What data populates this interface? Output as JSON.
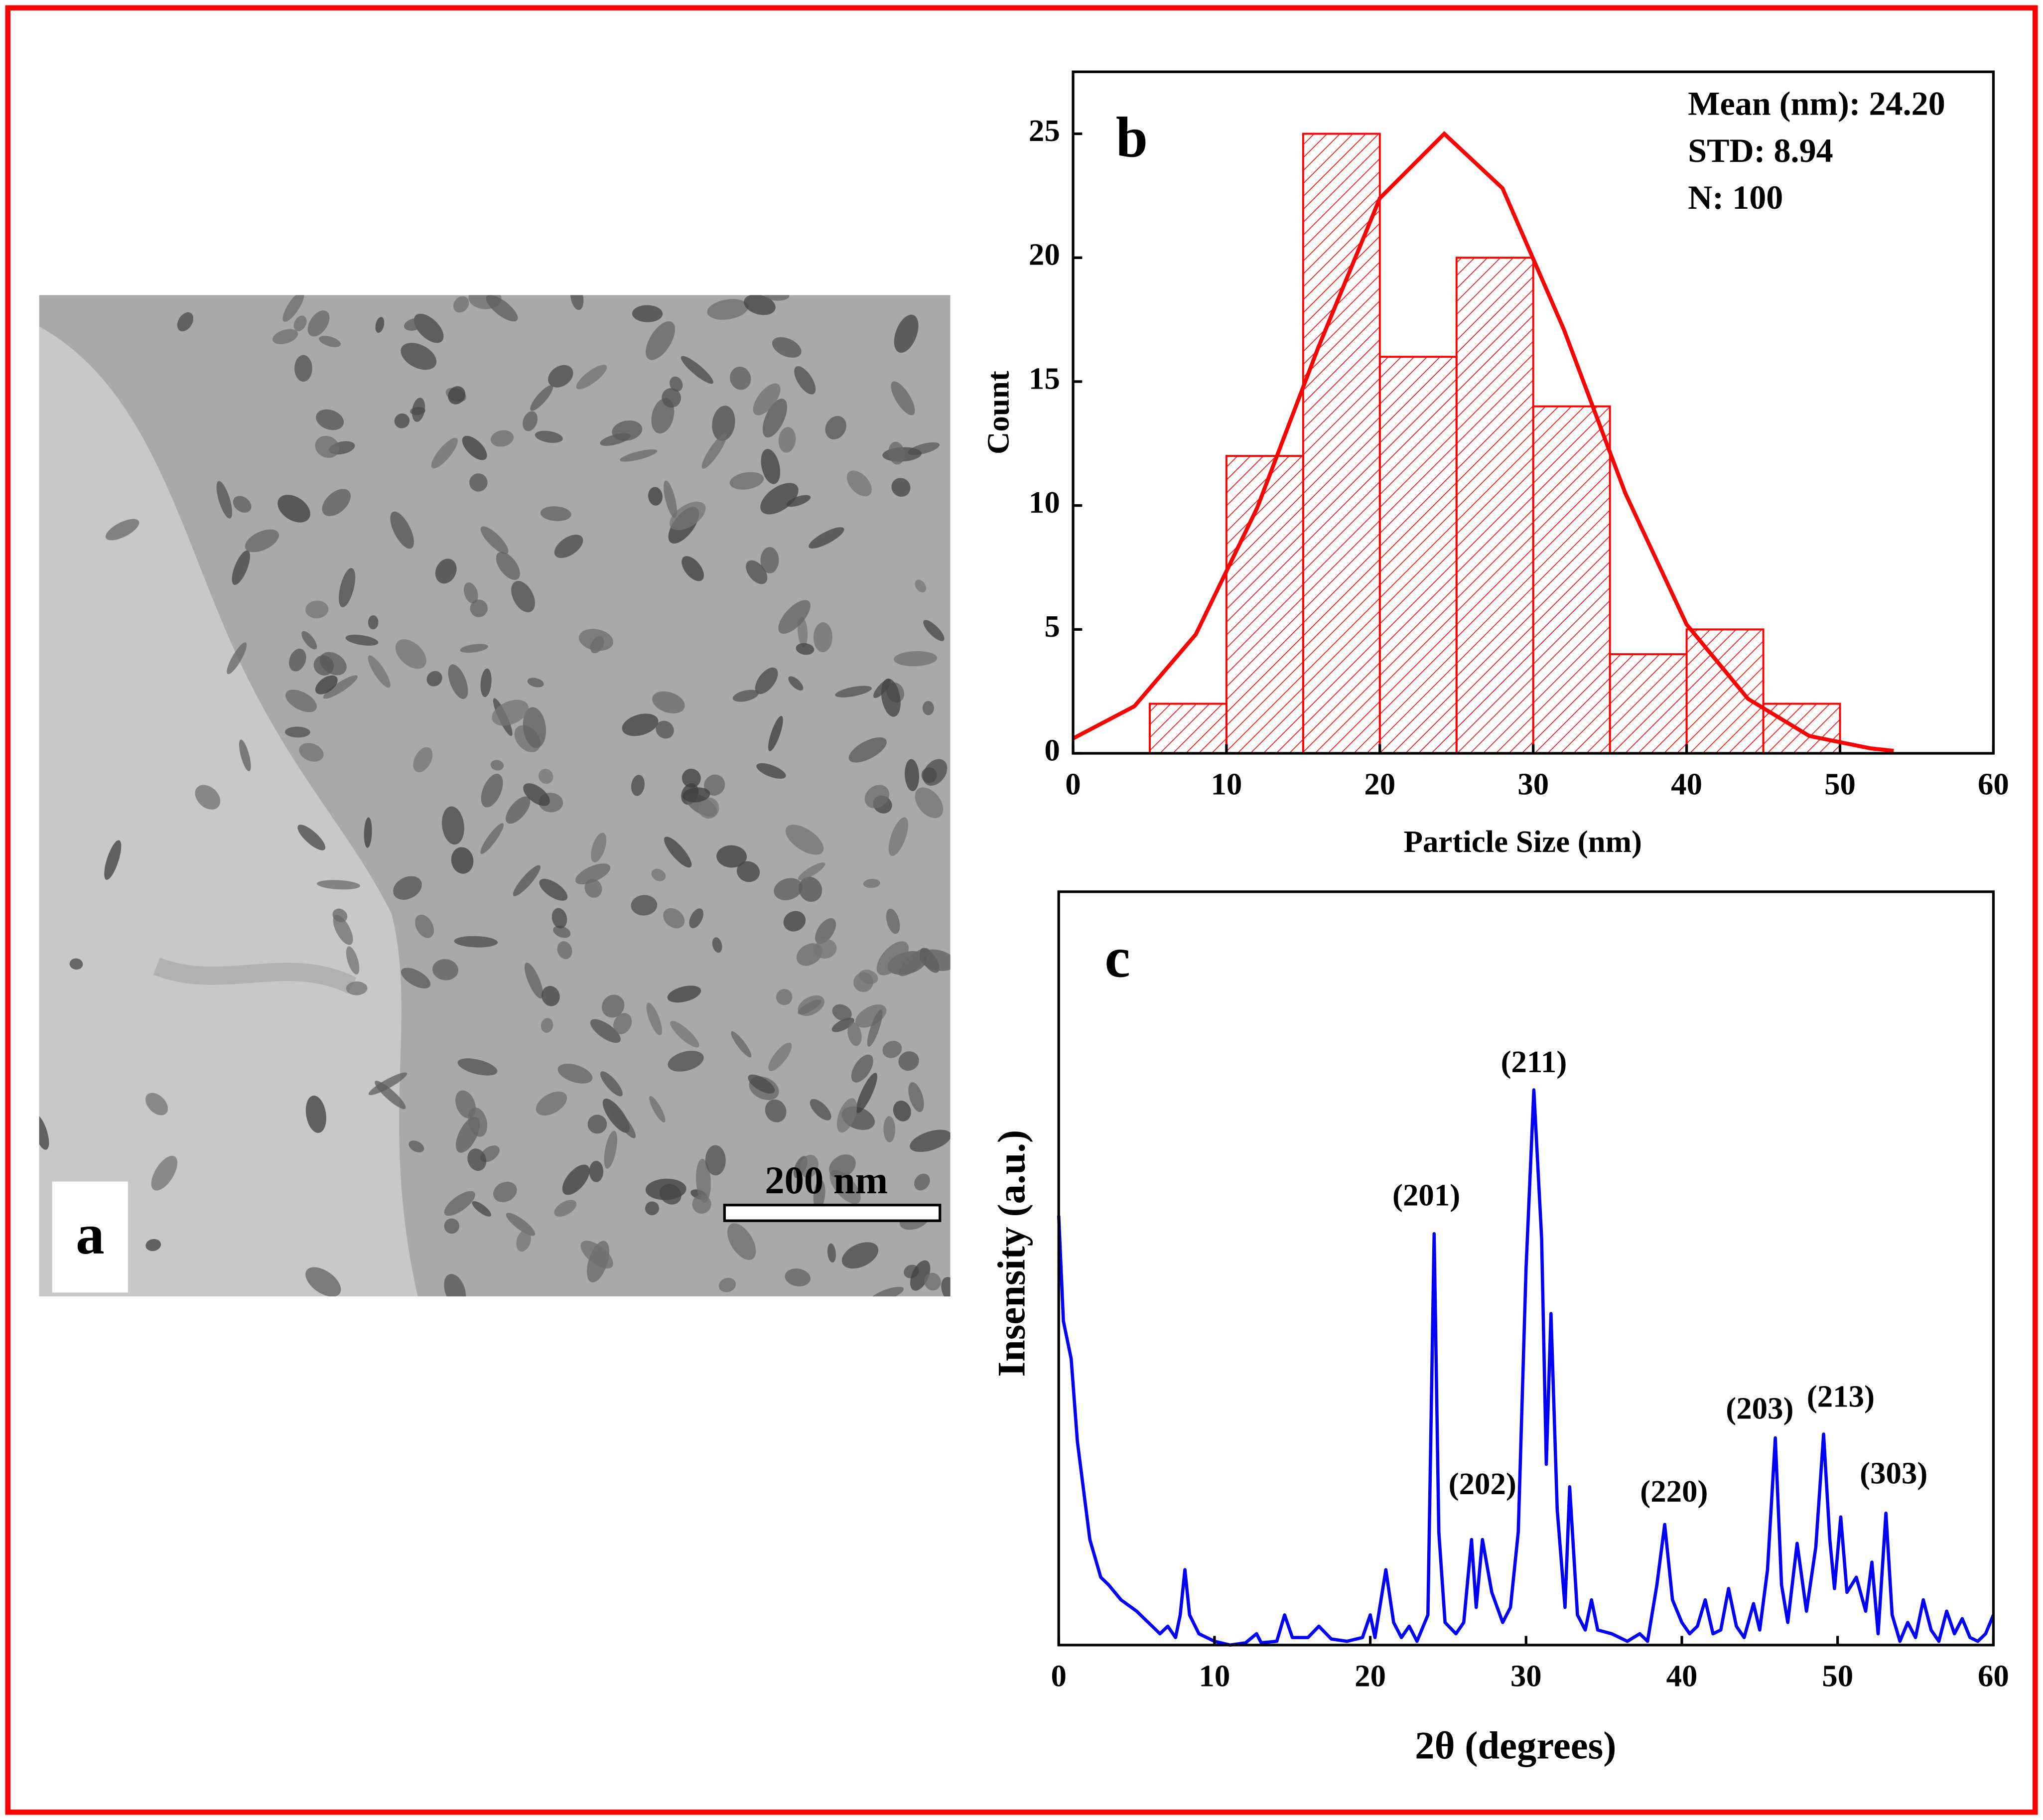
{
  "image_panel": {
    "label": "a",
    "scale_bar": "200 nm"
  },
  "chart_data": [
    {
      "type": "histogram",
      "panel_label": "b",
      "x_label": "Particle Size (nm)",
      "y_label": "Count",
      "stats": [
        "Mean (nm): 24.20",
        "STD: 8.94",
        "N: 100"
      ],
      "bins": [
        5,
        10,
        15,
        20,
        25,
        30,
        35,
        40,
        45,
        50
      ],
      "values": [
        2,
        12,
        25,
        16,
        20,
        14,
        4,
        5,
        2
      ],
      "color": "#ff0000",
      "fit": {
        "x": [
          0,
          4,
          8,
          12,
          16,
          20,
          24.2,
          28,
          32,
          36,
          40,
          44,
          48,
          52,
          53.5
        ],
        "values": [
          0.6,
          1.9,
          4.8,
          9.9,
          16.4,
          22.4,
          25,
          22.8,
          17.1,
          10.5,
          5.2,
          2.2,
          0.7,
          0.2,
          0.1
        ],
        "color": "#ff0000"
      },
      "xlim": [
        0,
        60
      ],
      "xticks": [
        0,
        10,
        20,
        30,
        40,
        50,
        60
      ],
      "ylim": [
        0,
        27.5
      ],
      "yticks": [
        0,
        5,
        10,
        15,
        20,
        25
      ]
    },
    {
      "type": "line",
      "panel_label": "c",
      "x_label": "2θ (degrees)",
      "y_label": "Insensity (a.u.)",
      "x": [
        0,
        0.3,
        0.8,
        1.2,
        2,
        2.7,
        3.2,
        4,
        5,
        6,
        6.5,
        7,
        7.5,
        7.8,
        8.1,
        8.4,
        9,
        10,
        11,
        12,
        12.7,
        13,
        14,
        14.5,
        15,
        16,
        16.7,
        17.5,
        18.5,
        19.5,
        20,
        20.3,
        21,
        21.5,
        22,
        22.5,
        23,
        23.7,
        24.1,
        24.4,
        24.8,
        25.5,
        26,
        26.5,
        26.8,
        27.2,
        27.8,
        28.5,
        29,
        29.5,
        30,
        30.5,
        31,
        31.3,
        31.6,
        32,
        32.5,
        32.8,
        33.3,
        33.8,
        34.2,
        34.6,
        35.5,
        36.5,
        37.3,
        37.8,
        38.4,
        38.9,
        39.4,
        40,
        40.5,
        41,
        41.5,
        42,
        42.5,
        43,
        43.5,
        44,
        44.6,
        45,
        45.5,
        46,
        46.4,
        46.8,
        47.4,
        48,
        48.6,
        49.1,
        49.5,
        49.8,
        50.2,
        50.6,
        51.2,
        51.8,
        52.2,
        52.6,
        53.1,
        53.5,
        54,
        54.5,
        55,
        55.5,
        56,
        56.5,
        57,
        57.5,
        58,
        58.5,
        59,
        59.5,
        60
      ],
      "series": [
        {
          "color": "#0000ff",
          "values": [
            57,
            43,
            38,
            27,
            14,
            9,
            8,
            6,
            4.5,
            2.5,
            1.5,
            2.5,
            1,
            4,
            10,
            4,
            1.5,
            0.5,
            0,
            0.3,
            1.5,
            0.3,
            0.5,
            4,
            1,
            1,
            2.5,
            0.8,
            0.5,
            1,
            4,
            1,
            10,
            3,
            1,
            2.5,
            0.5,
            4,
            54.6,
            15,
            3,
            1.5,
            3,
            14,
            5,
            14,
            7,
            3,
            5,
            15,
            50,
            73.7,
            54,
            24,
            44,
            18,
            5,
            21,
            4,
            2,
            6,
            2,
            1.5,
            0.5,
            1.5,
            0.5,
            8,
            16,
            6,
            3,
            1.5,
            2.5,
            6,
            1.5,
            2,
            7.5,
            2.5,
            1,
            5.5,
            2,
            10,
            27.5,
            8,
            3,
            13.5,
            4.5,
            13,
            28,
            14,
            7.5,
            17,
            7,
            9,
            4.5,
            11,
            1.5,
            17.5,
            4,
            0.5,
            3,
            1,
            6,
            2,
            0.5,
            4.5,
            1.5,
            3.5,
            1,
            0.5,
            1.5,
            4
          ]
        }
      ],
      "peak_labels": [
        {
          "label": "(201)",
          "x": 23.6,
          "y": 59.3
        },
        {
          "label": "(211)",
          "x": 30.5,
          "y": 77
        },
        {
          "label": "(202)",
          "x": 27.2,
          "y": 21
        },
        {
          "label": "(220)",
          "x": 39.5,
          "y": 20
        },
        {
          "label": "(203)",
          "x": 45,
          "y": 31
        },
        {
          "label": "(213)",
          "x": 50.2,
          "y": 32.6
        },
        {
          "label": "(303)",
          "x": 53.6,
          "y": 22.4
        }
      ],
      "xlim": [
        0,
        60
      ],
      "xticks": [
        0,
        10,
        20,
        30,
        40,
        50,
        60
      ],
      "ylim": [
        0,
        100
      ]
    }
  ]
}
